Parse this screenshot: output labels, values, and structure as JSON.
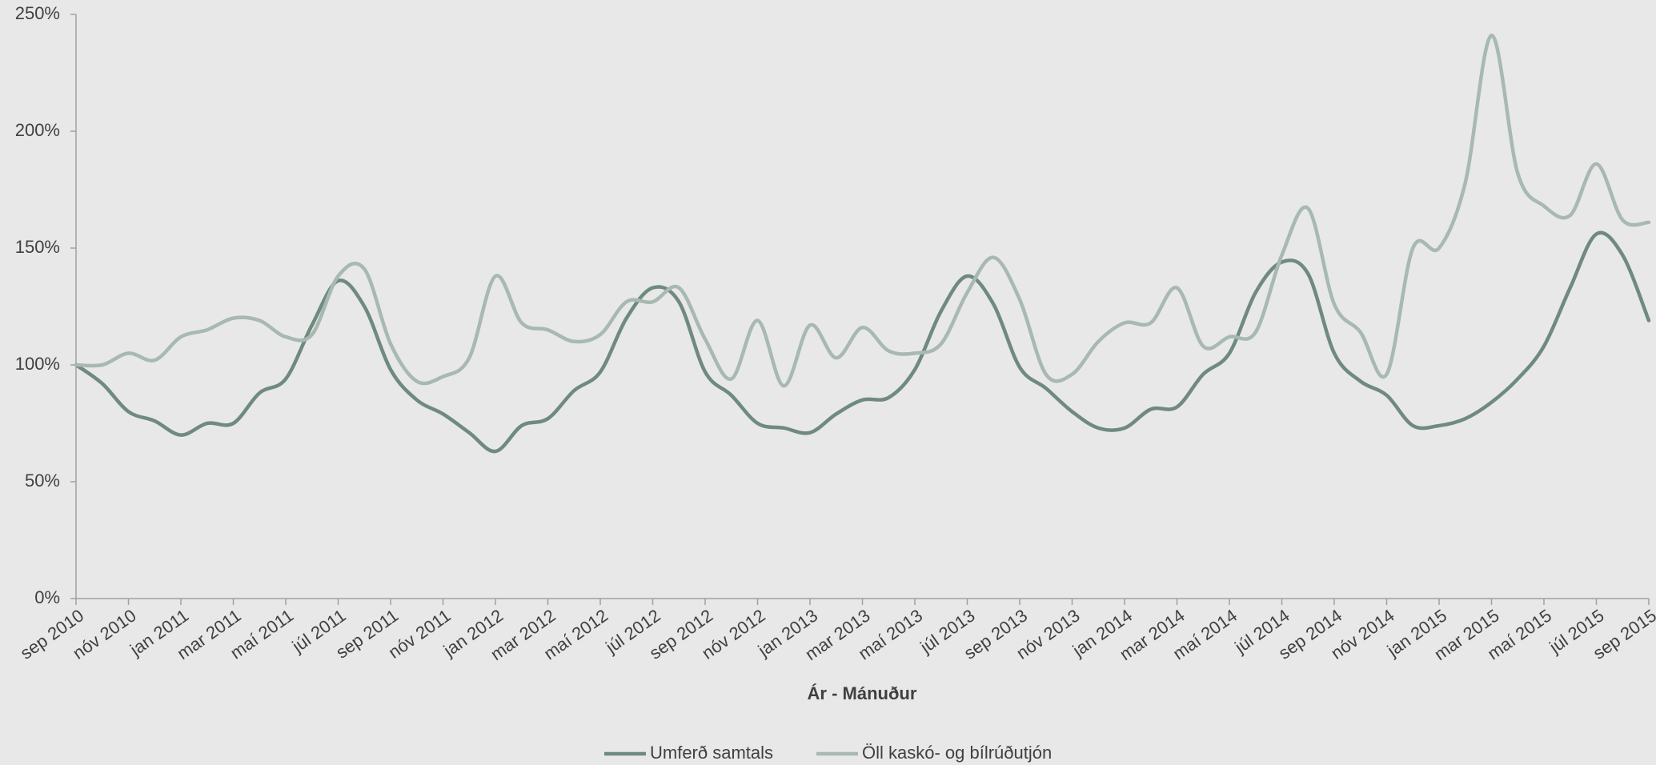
{
  "chart_data": {
    "type": "line",
    "x_label": "Ár - Mánuður",
    "categories": [
      "sep 2010",
      null,
      "nóv 2010",
      null,
      "jan 2011",
      null,
      "mar 2011",
      null,
      "maí 2011",
      null,
      "júl 2011",
      null,
      "sep 2011",
      null,
      "nóv 2011",
      null,
      "jan 2012",
      null,
      "mar 2012",
      null,
      "maí 2012",
      null,
      "júl 2012",
      null,
      "sep 2012",
      null,
      "nóv 2012",
      null,
      "jan 2013",
      null,
      "mar 2013",
      null,
      "maí 2013",
      null,
      "júl 2013",
      null,
      "sep 2013",
      null,
      "nóv 2013",
      null,
      "jan 2014",
      null,
      "mar 2014",
      null,
      "maí 2014",
      null,
      "júl 2014",
      null,
      "sep 2014",
      null,
      "nóv 2014",
      null,
      "jan 2015",
      null,
      "mar 2015",
      null,
      "maí 2015",
      null,
      "júl 2015",
      null,
      "sep 2015"
    ],
    "series": [
      {
        "name": "Umferð samtals",
        "color": "#6f8a7e",
        "values": [
          100,
          92,
          80,
          76,
          70,
          75,
          75,
          88,
          94,
          117,
          136,
          125,
          98,
          85,
          79,
          71,
          63,
          74,
          77,
          89,
          97,
          120,
          133,
          127,
          97,
          87,
          75,
          73,
          71,
          79,
          85,
          86,
          98,
          123,
          138,
          126,
          99,
          90,
          80,
          73,
          73,
          81,
          82,
          96,
          105,
          131,
          144,
          139,
          105,
          93,
          87,
          74,
          74,
          77,
          84,
          94,
          108,
          133,
          156,
          147,
          119
        ]
      },
      {
        "name": "Öll kaskó- og bílrúðutjón",
        "color": "#a7b9b0",
        "values": [
          100,
          100,
          105,
          102,
          112,
          115,
          120,
          119,
          112,
          113,
          138,
          141,
          109,
          93,
          95,
          103,
          138,
          118,
          115,
          110,
          113,
          127,
          127,
          133,
          111,
          94,
          119,
          91,
          117,
          103,
          116,
          106,
          105,
          109,
          131,
          146,
          128,
          96,
          96,
          110,
          118,
          118,
          133,
          108,
          112,
          114,
          147,
          167,
          126,
          114,
          96,
          150,
          150,
          178,
          241,
          182,
          168,
          164,
          186,
          162,
          161
        ]
      }
    ],
    "ylim": [
      0,
      250
    ],
    "yticks": [
      {
        "value": 0,
        "label": "0%"
      },
      {
        "value": 50,
        "label": "50%"
      },
      {
        "value": 100,
        "label": "100%"
      },
      {
        "value": 150,
        "label": "150%"
      },
      {
        "value": 200,
        "label": "200%"
      },
      {
        "value": 250,
        "label": "250%"
      }
    ],
    "legend": "bottom"
  }
}
